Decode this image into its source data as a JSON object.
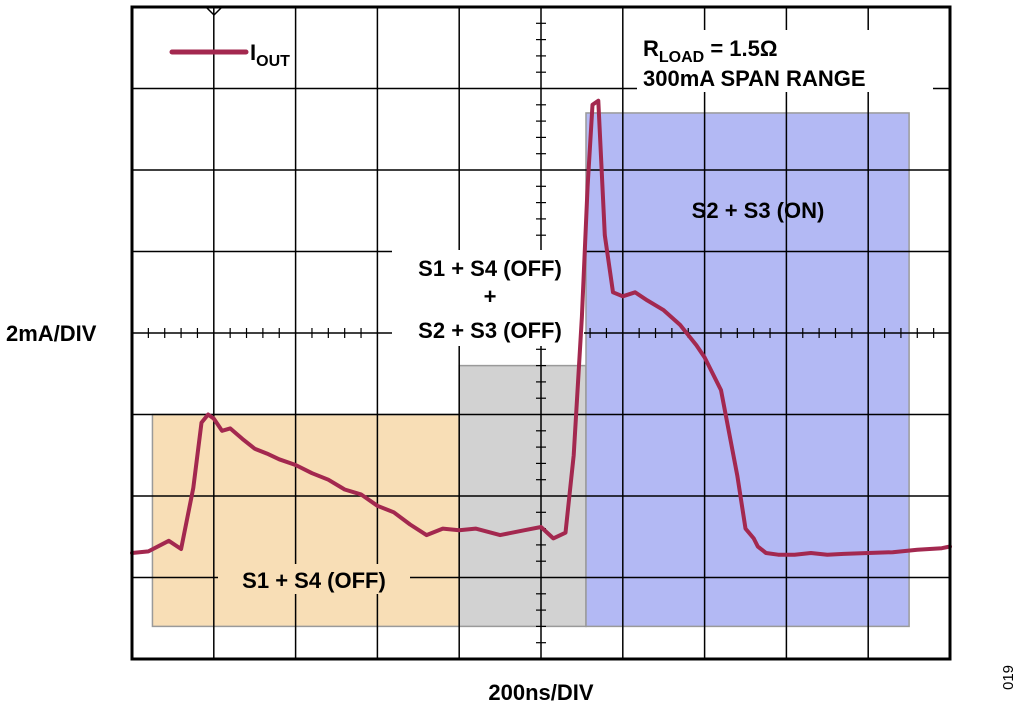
{
  "chart_data": {
    "type": "line",
    "title": "",
    "xlabel": "200ns/DIV",
    "ylabel": "2mA/DIV",
    "xlim": [
      0,
      10
    ],
    "ylim": [
      0,
      8
    ],
    "grid": true,
    "legend": {
      "placement": "top-left",
      "entries": [
        "IOUT"
      ]
    },
    "legend_label": {
      "main": "I",
      "sub": "OUT"
    },
    "colors": {
      "trace": "#a3284f",
      "region_off_s1s4": "#f8deb6",
      "region_transition": "#d2d2d2",
      "region_on": "#b3b9f4",
      "grid": "#000000"
    },
    "regions": [
      {
        "label": "S1 + S4 (OFF)",
        "x": [
          0.25,
          4.0
        ],
        "y": [
          0.4,
          3.0
        ]
      },
      {
        "label": "S1 + S4 (OFF) + S2 + S3 (OFF)",
        "x": [
          4.0,
          5.55
        ],
        "y": [
          0.4,
          3.6
        ]
      },
      {
        "label": "S2 + S3 (ON)",
        "x": [
          5.55,
          9.5
        ],
        "y": [
          0.4,
          6.7
        ]
      }
    ],
    "annotations": {
      "region1_label": "S1 + S4 (OFF)",
      "region2_line1": "S1 + S4 (OFF)",
      "region2_plus": "+",
      "region2_line2": "S2 + S3 (OFF)",
      "region3_label": "S2 + S3 (ON)",
      "rload_main": "R",
      "rload_sub": "LOAD",
      "rload_value": " = 1.5Ω",
      "span_range": "300mA SPAN RANGE",
      "figure_number": "019"
    },
    "series": [
      {
        "name": "IOUT",
        "x": [
          0,
          0.2,
          0.45,
          0.6,
          0.75,
          0.85,
          0.93,
          1.0,
          1.1,
          1.2,
          1.35,
          1.5,
          1.65,
          1.8,
          2.0,
          2.2,
          2.4,
          2.6,
          2.8,
          3.0,
          3.2,
          3.4,
          3.6,
          3.8,
          4.0,
          4.2,
          4.5,
          4.8,
          5.0,
          5.15,
          5.3,
          5.4,
          5.5,
          5.57,
          5.63,
          5.7,
          5.78,
          5.88,
          6.0,
          6.15,
          6.3,
          6.5,
          6.7,
          6.9,
          7.0,
          7.2,
          7.4,
          7.5,
          7.6,
          7.65,
          7.75,
          7.9,
          8.1,
          8.3,
          8.5,
          8.7,
          9.0,
          9.3,
          9.6,
          9.9,
          10.0
        ],
        "y": [
          1.3,
          1.32,
          1.45,
          1.35,
          2.1,
          2.9,
          3.0,
          2.95,
          2.8,
          2.83,
          2.7,
          2.58,
          2.52,
          2.45,
          2.38,
          2.28,
          2.2,
          2.08,
          2.02,
          1.88,
          1.8,
          1.65,
          1.52,
          1.6,
          1.58,
          1.6,
          1.52,
          1.58,
          1.62,
          1.48,
          1.55,
          2.5,
          4.2,
          5.8,
          6.8,
          6.85,
          5.2,
          4.5,
          4.45,
          4.5,
          4.4,
          4.28,
          4.1,
          3.85,
          3.7,
          3.3,
          2.25,
          1.6,
          1.48,
          1.38,
          1.3,
          1.28,
          1.28,
          1.3,
          1.28,
          1.29,
          1.3,
          1.31,
          1.34,
          1.36,
          1.38
        ]
      }
    ]
  }
}
